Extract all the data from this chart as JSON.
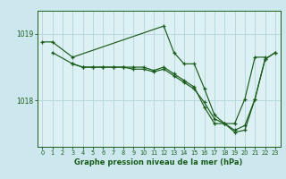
{
  "bg_color": "#cce8ee",
  "plot_bg_color": "#ddf0f4",
  "grid_color": "#b8d8de",
  "line_color": "#1a5c1a",
  "xlabel": "Graphe pression niveau de la mer (hPa)",
  "ylabel_ticks": [
    1018,
    1019
  ],
  "xlim": [
    -0.5,
    23.5
  ],
  "ylim": [
    1017.3,
    1019.35
  ],
  "figsize": [
    3.2,
    2.0
  ],
  "dpi": 100,
  "series": [
    {
      "x": [
        0,
        1,
        3,
        12,
        13,
        14,
        15,
        16,
        17,
        18,
        19,
        20,
        21,
        22
      ],
      "y": [
        1018.88,
        1018.88,
        1018.65,
        1019.12,
        1018.72,
        1018.55,
        1018.55,
        1018.18,
        1017.78,
        1017.65,
        1017.65,
        1018.02,
        1018.65,
        1018.65
      ]
    },
    {
      "x": [
        1,
        3,
        4,
        5,
        6,
        7,
        8,
        9,
        10,
        11,
        12,
        13,
        14,
        15,
        16,
        17,
        18,
        19,
        20,
        21,
        22,
        23
      ],
      "y": [
        1018.72,
        1018.55,
        1018.5,
        1018.5,
        1018.5,
        1018.5,
        1018.5,
        1018.47,
        1018.47,
        1018.43,
        1018.47,
        1018.37,
        1018.27,
        1018.17,
        1017.97,
        1017.72,
        1017.65,
        1017.55,
        1017.62,
        1018.02,
        1018.62,
        1018.72
      ]
    },
    {
      "x": [
        3,
        4,
        5,
        6,
        7,
        8,
        9,
        10,
        11,
        12,
        13,
        14,
        15,
        16,
        17,
        18,
        19,
        20,
        21,
        22,
        23
      ],
      "y": [
        1018.55,
        1018.5,
        1018.5,
        1018.5,
        1018.5,
        1018.5,
        1018.5,
        1018.5,
        1018.45,
        1018.5,
        1018.4,
        1018.3,
        1018.2,
        1017.9,
        1017.65,
        1017.65,
        1017.52,
        1017.55,
        1018.02,
        1018.62,
        1018.72
      ]
    }
  ]
}
